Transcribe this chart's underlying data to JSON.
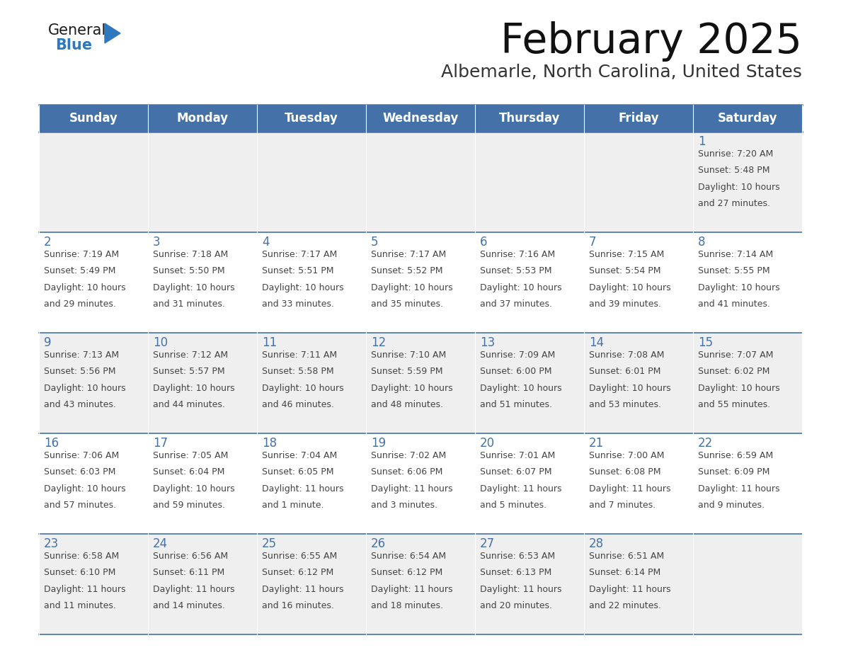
{
  "title": "February 2025",
  "subtitle": "Albemarle, North Carolina, United States",
  "header_bg": "#4472A8",
  "header_text_color": "#FFFFFF",
  "day_names": [
    "Sunday",
    "Monday",
    "Tuesday",
    "Wednesday",
    "Thursday",
    "Friday",
    "Saturday"
  ],
  "odd_row_bg": "#EFEFEF",
  "even_row_bg": "#FFFFFF",
  "cell_border_color": "#4472A8",
  "day_num_color": "#4472A8",
  "info_text_color": "#444444",
  "logo_general_color": "#1a1a1a",
  "logo_blue_color": "#2E78BE",
  "calendar_data": [
    [
      null,
      null,
      null,
      null,
      null,
      null,
      {
        "day": 1,
        "sunrise": "7:20 AM",
        "sunset": "5:48 PM",
        "daylight": "10 hours and 27 minutes."
      }
    ],
    [
      {
        "day": 2,
        "sunrise": "7:19 AM",
        "sunset": "5:49 PM",
        "daylight": "10 hours and 29 minutes."
      },
      {
        "day": 3,
        "sunrise": "7:18 AM",
        "sunset": "5:50 PM",
        "daylight": "10 hours and 31 minutes."
      },
      {
        "day": 4,
        "sunrise": "7:17 AM",
        "sunset": "5:51 PM",
        "daylight": "10 hours and 33 minutes."
      },
      {
        "day": 5,
        "sunrise": "7:17 AM",
        "sunset": "5:52 PM",
        "daylight": "10 hours and 35 minutes."
      },
      {
        "day": 6,
        "sunrise": "7:16 AM",
        "sunset": "5:53 PM",
        "daylight": "10 hours and 37 minutes."
      },
      {
        "day": 7,
        "sunrise": "7:15 AM",
        "sunset": "5:54 PM",
        "daylight": "10 hours and 39 minutes."
      },
      {
        "day": 8,
        "sunrise": "7:14 AM",
        "sunset": "5:55 PM",
        "daylight": "10 hours and 41 minutes."
      }
    ],
    [
      {
        "day": 9,
        "sunrise": "7:13 AM",
        "sunset": "5:56 PM",
        "daylight": "10 hours and 43 minutes."
      },
      {
        "day": 10,
        "sunrise": "7:12 AM",
        "sunset": "5:57 PM",
        "daylight": "10 hours and 44 minutes."
      },
      {
        "day": 11,
        "sunrise": "7:11 AM",
        "sunset": "5:58 PM",
        "daylight": "10 hours and 46 minutes."
      },
      {
        "day": 12,
        "sunrise": "7:10 AM",
        "sunset": "5:59 PM",
        "daylight": "10 hours and 48 minutes."
      },
      {
        "day": 13,
        "sunrise": "7:09 AM",
        "sunset": "6:00 PM",
        "daylight": "10 hours and 51 minutes."
      },
      {
        "day": 14,
        "sunrise": "7:08 AM",
        "sunset": "6:01 PM",
        "daylight": "10 hours and 53 minutes."
      },
      {
        "day": 15,
        "sunrise": "7:07 AM",
        "sunset": "6:02 PM",
        "daylight": "10 hours and 55 minutes."
      }
    ],
    [
      {
        "day": 16,
        "sunrise": "7:06 AM",
        "sunset": "6:03 PM",
        "daylight": "10 hours and 57 minutes."
      },
      {
        "day": 17,
        "sunrise": "7:05 AM",
        "sunset": "6:04 PM",
        "daylight": "10 hours and 59 minutes."
      },
      {
        "day": 18,
        "sunrise": "7:04 AM",
        "sunset": "6:05 PM",
        "daylight": "11 hours and 1 minute."
      },
      {
        "day": 19,
        "sunrise": "7:02 AM",
        "sunset": "6:06 PM",
        "daylight": "11 hours and 3 minutes."
      },
      {
        "day": 20,
        "sunrise": "7:01 AM",
        "sunset": "6:07 PM",
        "daylight": "11 hours and 5 minutes."
      },
      {
        "day": 21,
        "sunrise": "7:00 AM",
        "sunset": "6:08 PM",
        "daylight": "11 hours and 7 minutes."
      },
      {
        "day": 22,
        "sunrise": "6:59 AM",
        "sunset": "6:09 PM",
        "daylight": "11 hours and 9 minutes."
      }
    ],
    [
      {
        "day": 23,
        "sunrise": "6:58 AM",
        "sunset": "6:10 PM",
        "daylight": "11 hours and 11 minutes."
      },
      {
        "day": 24,
        "sunrise": "6:56 AM",
        "sunset": "6:11 PM",
        "daylight": "11 hours and 14 minutes."
      },
      {
        "day": 25,
        "sunrise": "6:55 AM",
        "sunset": "6:12 PM",
        "daylight": "11 hours and 16 minutes."
      },
      {
        "day": 26,
        "sunrise": "6:54 AM",
        "sunset": "6:12 PM",
        "daylight": "11 hours and 18 minutes."
      },
      {
        "day": 27,
        "sunrise": "6:53 AM",
        "sunset": "6:13 PM",
        "daylight": "11 hours and 20 minutes."
      },
      {
        "day": 28,
        "sunrise": "6:51 AM",
        "sunset": "6:14 PM",
        "daylight": "11 hours and 22 minutes."
      },
      null
    ]
  ]
}
